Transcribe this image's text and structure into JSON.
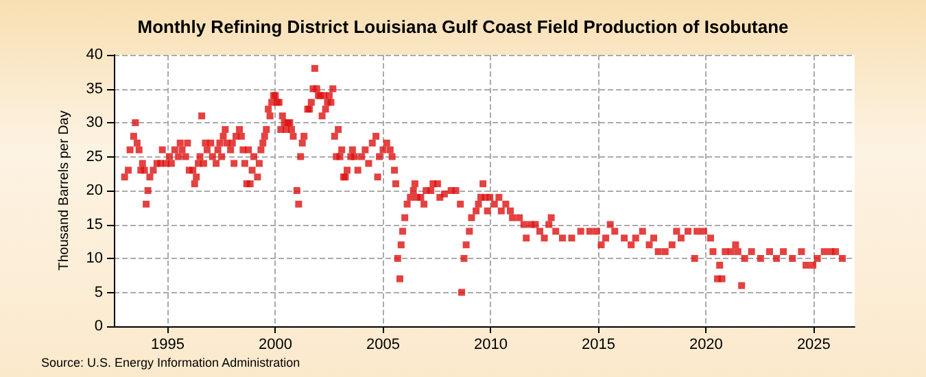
{
  "chart_data": {
    "type": "scatter",
    "title": "Monthly Refining District Louisiana Gulf Coast Field Production of Isobutane",
    "ylabel": "Thousand Barrels per Day",
    "annotations": [
      "Source: U.S. Energy Information Administration"
    ],
    "xlim": [
      1992.5,
      2026.9
    ],
    "xticks": [
      1995,
      2000,
      2005,
      2010,
      2015,
      2020,
      2025
    ],
    "ylim": [
      0,
      40
    ],
    "yticks": [
      0,
      5,
      10,
      15,
      20,
      25,
      30,
      35,
      40
    ],
    "grid": true,
    "marker": "square",
    "series": [
      {
        "color": "#dd1111",
        "x": [
          1993.0,
          1993.17,
          1993.25,
          1993.42,
          1993.5,
          1993.58,
          1993.67,
          1993.75,
          1993.83,
          1993.92,
          1994.0,
          1994.08,
          1994.17,
          1994.33,
          1994.5,
          1994.67,
          1994.75,
          1994.92,
          1995.08,
          1995.17,
          1995.33,
          1995.5,
          1995.58,
          1995.67,
          1995.83,
          1995.92,
          1996.0,
          1996.17,
          1996.25,
          1996.33,
          1996.42,
          1996.5,
          1996.58,
          1996.67,
          1996.75,
          1996.83,
          1997.0,
          1997.08,
          1997.25,
          1997.33,
          1997.42,
          1997.5,
          1997.58,
          1997.67,
          1997.75,
          1997.92,
          1998.0,
          1998.08,
          1998.17,
          1998.33,
          1998.42,
          1998.5,
          1998.58,
          1998.67,
          1998.75,
          1998.83,
          1998.92,
          1999.0,
          1999.17,
          1999.25,
          1999.33,
          1999.42,
          1999.5,
          1999.58,
          1999.67,
          1999.75,
          1999.83,
          1999.92,
          2000.0,
          2000.08,
          2000.17,
          2000.25,
          2000.33,
          2000.42,
          2000.5,
          2000.58,
          2000.67,
          2000.75,
          2000.83,
          2001.0,
          2001.08,
          2001.17,
          2001.25,
          2001.33,
          2001.5,
          2001.58,
          2001.67,
          2001.75,
          2001.83,
          2001.92,
          2002.0,
          2002.08,
          2002.17,
          2002.25,
          2002.33,
          2002.42,
          2002.5,
          2002.58,
          2002.67,
          2002.75,
          2002.83,
          2002.92,
          2003.0,
          2003.08,
          2003.17,
          2003.25,
          2003.33,
          2003.5,
          2003.58,
          2003.67,
          2003.83,
          2004.0,
          2004.17,
          2004.33,
          2004.5,
          2004.67,
          2004.75,
          2004.83,
          2005.0,
          2005.17,
          2005.33,
          2005.42,
          2005.53,
          2005.59,
          2005.68,
          2005.78,
          2005.84,
          2005.91,
          2006.01,
          2006.12,
          2006.27,
          2006.41,
          2006.48,
          2006.58,
          2006.75,
          2006.9,
          2007.0,
          2007.22,
          2007.32,
          2007.53,
          2007.64,
          2007.85,
          2008.16,
          2008.38,
          2008.59,
          2008.65,
          2008.76,
          2008.86,
          2009.01,
          2009.11,
          2009.32,
          2009.43,
          2009.54,
          2009.64,
          2009.75,
          2009.85,
          2009.96,
          2010.17,
          2010.38,
          2010.49,
          2010.7,
          2010.91,
          2011.01,
          2011.33,
          2011.54,
          2011.65,
          2011.86,
          2012.07,
          2012.28,
          2012.49,
          2012.7,
          2012.81,
          2013.02,
          2013.33,
          2013.76,
          2014.18,
          2014.6,
          2014.92,
          2015.13,
          2015.34,
          2015.55,
          2015.76,
          2016.2,
          2016.52,
          2016.73,
          2017.05,
          2017.36,
          2017.57,
          2017.78,
          2018.1,
          2018.42,
          2018.63,
          2018.84,
          2019.16,
          2019.47,
          2019.58,
          2019.89,
          2020.21,
          2020.32,
          2020.53,
          2020.63,
          2020.74,
          2020.89,
          2021.16,
          2021.37,
          2021.48,
          2021.65,
          2021.79,
          2022.11,
          2022.53,
          2022.95,
          2023.27,
          2023.59,
          2024.01,
          2024.43,
          2024.64,
          2024.96,
          2025.17,
          2025.49,
          2025.8,
          2026.01,
          2026.33
        ],
        "values": [
          22,
          23,
          26,
          28,
          30,
          27,
          26,
          23,
          24,
          23,
          18,
          20,
          22,
          23,
          24,
          24,
          26,
          24,
          25,
          24,
          26,
          25,
          27,
          26,
          25,
          27,
          23,
          23,
          21,
          22,
          24,
          25,
          31,
          24,
          27,
          26,
          27,
          25,
          24,
          26,
          27,
          25,
          28,
          29,
          27,
          26,
          27,
          24,
          28,
          29,
          28,
          26,
          24,
          21,
          26,
          21,
          23,
          25,
          22,
          24,
          26,
          27,
          28,
          29,
          32,
          31,
          33,
          34,
          34,
          33,
          33,
          29,
          31,
          30,
          29,
          30,
          30,
          29,
          28,
          20,
          18,
          25,
          27,
          28,
          32,
          32,
          33,
          35,
          38,
          35,
          34,
          34,
          31,
          34,
          32,
          33,
          34,
          33,
          35,
          28,
          25,
          29,
          25,
          26,
          22,
          22,
          23,
          25,
          26,
          25,
          23,
          25,
          26,
          24,
          27,
          28,
          22,
          25,
          26,
          27,
          26,
          25,
          23,
          21,
          10,
          7,
          12,
          14,
          16,
          18,
          19,
          20,
          21,
          19,
          19,
          18,
          20,
          20,
          21,
          21,
          19,
          19.5,
          20,
          20,
          18,
          5,
          10,
          12,
          14,
          16,
          17,
          18,
          19,
          21,
          19,
          17,
          19,
          18,
          19,
          17,
          18,
          17,
          16,
          16,
          15,
          13,
          15,
          15,
          14,
          13,
          15,
          16,
          14,
          13,
          13,
          14,
          14,
          14,
          12,
          13,
          15,
          14,
          13,
          12,
          13,
          14,
          12,
          13,
          11,
          11,
          12,
          14,
          13,
          14,
          10,
          14,
          14,
          13,
          11,
          7,
          9,
          7,
          11,
          11,
          12,
          11,
          6,
          10,
          11,
          10,
          11,
          10,
          11,
          10,
          11,
          9,
          9,
          10,
          11,
          11,
          11,
          10
        ]
      }
    ]
  }
}
